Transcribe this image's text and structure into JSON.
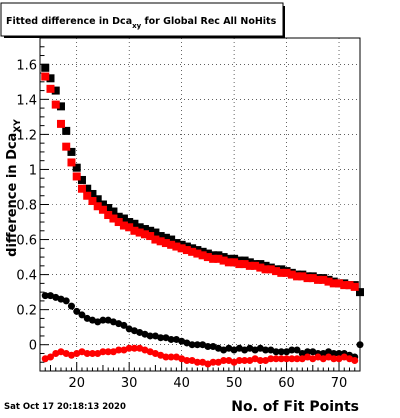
{
  "chart_data": {
    "type": "scatter",
    "title": "Fitted difference in Dca",
    "title_sub": "xy",
    "title_suffix": " for Global Rec All NoHits",
    "xlabel": "No. of Fit Points",
    "ylabel": "difference in Dca",
    "ylabel_sub": "XY",
    "xlim": [
      13,
      74
    ],
    "ylim": [
      -0.15,
      1.75
    ],
    "x_ticks": [
      20,
      30,
      40,
      50,
      60,
      70
    ],
    "y_ticks": [
      0,
      0.2,
      0.4,
      0.6,
      0.8,
      1,
      1.2,
      1.4,
      1.6
    ],
    "x_tick_labels": [
      "20",
      "30",
      "40",
      "50",
      "60",
      "70"
    ],
    "y_tick_labels": [
      "0",
      "0.2",
      "0.4",
      "0.6",
      "0.8",
      "1",
      "1.2",
      "1.4",
      "1.6"
    ],
    "grid": true,
    "legend": "none",
    "timestamp": "Sat Oct 17 20:18:13 2020",
    "series": [
      {
        "color": "#000000",
        "marker": "square",
        "x_start": 14,
        "x_end": 74,
        "values": [
          1.58,
          1.52,
          1.45,
          1.36,
          1.22,
          1.1,
          1.01,
          0.94,
          0.89,
          0.86,
          0.83,
          0.8,
          0.78,
          0.76,
          0.73,
          0.72,
          0.7,
          0.69,
          0.67,
          0.66,
          0.65,
          0.64,
          0.62,
          0.61,
          0.6,
          0.58,
          0.57,
          0.56,
          0.55,
          0.54,
          0.53,
          0.52,
          0.51,
          0.51,
          0.5,
          0.49,
          0.49,
          0.48,
          0.48,
          0.47,
          0.46,
          0.46,
          0.45,
          0.44,
          0.43,
          0.43,
          0.42,
          0.41,
          0.4,
          0.4,
          0.39,
          0.39,
          0.38,
          0.38,
          0.37,
          0.36,
          0.35,
          0.35,
          0.34,
          0.34,
          0.3
        ]
      },
      {
        "color": "#ff0000",
        "marker": "square",
        "x_start": 14,
        "x_end": 73,
        "values": [
          1.53,
          1.46,
          1.37,
          1.26,
          1.13,
          1.04,
          0.96,
          0.89,
          0.85,
          0.82,
          0.79,
          0.77,
          0.74,
          0.72,
          0.7,
          0.68,
          0.67,
          0.65,
          0.64,
          0.63,
          0.62,
          0.6,
          0.59,
          0.58,
          0.57,
          0.56,
          0.55,
          0.54,
          0.53,
          0.52,
          0.51,
          0.5,
          0.49,
          0.49,
          0.48,
          0.47,
          0.47,
          0.46,
          0.46,
          0.45,
          0.45,
          0.44,
          0.43,
          0.43,
          0.42,
          0.41,
          0.41,
          0.4,
          0.39,
          0.39,
          0.38,
          0.38,
          0.37,
          0.37,
          0.36,
          0.35,
          0.35,
          0.34,
          0.34,
          0.33
        ]
      },
      {
        "color": "#000000",
        "marker": "circle",
        "x_start": 14,
        "x_end": 74,
        "values": [
          0.28,
          0.28,
          0.27,
          0.26,
          0.25,
          0.22,
          0.19,
          0.17,
          0.15,
          0.14,
          0.13,
          0.14,
          0.14,
          0.13,
          0.12,
          0.11,
          0.09,
          0.08,
          0.07,
          0.06,
          0.05,
          0.05,
          0.04,
          0.04,
          0.03,
          0.03,
          0.02,
          0.01,
          0.0,
          0.0,
          0.0,
          -0.01,
          -0.01,
          -0.02,
          -0.03,
          -0.02,
          -0.03,
          -0.02,
          -0.03,
          -0.02,
          -0.03,
          -0.02,
          -0.03,
          -0.03,
          -0.04,
          -0.04,
          -0.04,
          -0.03,
          -0.03,
          -0.05,
          -0.04,
          -0.04,
          -0.05,
          -0.05,
          -0.04,
          -0.05,
          -0.05,
          -0.05,
          -0.06,
          -0.07,
          0.0
        ]
      },
      {
        "color": "#ff0000",
        "marker": "circle",
        "x_start": 14,
        "x_end": 73,
        "values": [
          -0.08,
          -0.07,
          -0.05,
          -0.04,
          -0.05,
          -0.06,
          -0.05,
          -0.04,
          -0.05,
          -0.05,
          -0.05,
          -0.04,
          -0.04,
          -0.04,
          -0.03,
          -0.03,
          -0.02,
          -0.02,
          -0.02,
          -0.03,
          -0.04,
          -0.05,
          -0.06,
          -0.07,
          -0.07,
          -0.07,
          -0.08,
          -0.09,
          -0.09,
          -0.1,
          -0.1,
          -0.11,
          -0.1,
          -0.1,
          -0.09,
          -0.09,
          -0.1,
          -0.09,
          -0.09,
          -0.09,
          -0.08,
          -0.09,
          -0.09,
          -0.08,
          -0.08,
          -0.08,
          -0.08,
          -0.08,
          -0.08,
          -0.08,
          -0.07,
          -0.08,
          -0.07,
          -0.08,
          -0.07,
          -0.08,
          -0.08,
          -0.07,
          -0.08,
          -0.09
        ]
      }
    ]
  }
}
